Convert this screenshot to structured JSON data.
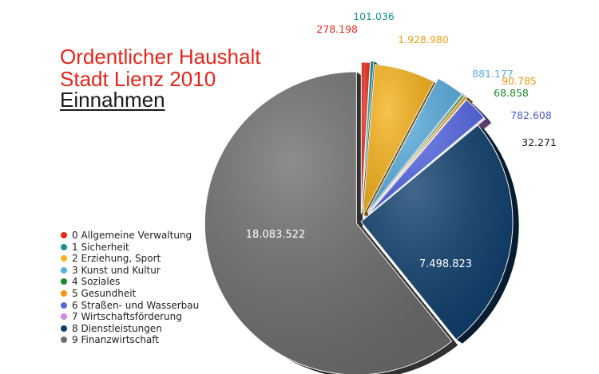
{
  "title": {
    "line1": "Ordentlicher Haushalt",
    "line2": "Stadt Lienz 2010",
    "line3": "Einnahmen",
    "color_red": "#e3261b",
    "color_dark": "#1a1a1a"
  },
  "chart_data": {
    "type": "pie",
    "title": "Ordentlicher Haushalt Stadt Lienz 2010 Einnahmen",
    "legend_position": "left",
    "categories": [
      "0 Allgemeine Verwaltung",
      "1 Sicherheit",
      "2 Erziehung, Sport",
      "3 Kunst und Kultur",
      "4 Soziales",
      "5 Gesundheit",
      "6 Straßen- und Wasserbau",
      "7 Wirtschaftsförderung",
      "8 Dienstleistungen",
      "9 Finanzwirtschaft"
    ],
    "values": [
      278198,
      101036,
      1928980,
      881177,
      68858,
      90785,
      782608,
      32271,
      7498823,
      18083522
    ],
    "data_labels": [
      "278.198",
      "101.036",
      "1.928.980",
      "881.177",
      "68.858",
      "90.785",
      "782.608",
      "32.271",
      "7.498.823",
      "18.083.522"
    ],
    "colors": [
      "#e8291c",
      "#17918c",
      "#f7b21a",
      "#5aaee0",
      "#1b8a2c",
      "#f5950f",
      "#5567e4",
      "#cf86e8",
      "#0d3e6c",
      "#6d6d6d"
    ],
    "label_colors": [
      "#e8291c",
      "#17918c",
      "#f0a21a",
      "#5aaee0",
      "#1b8a2c",
      "#f5950f",
      "#4c5cc8",
      "#222222",
      "#ffffff",
      "#ffffff"
    ]
  }
}
